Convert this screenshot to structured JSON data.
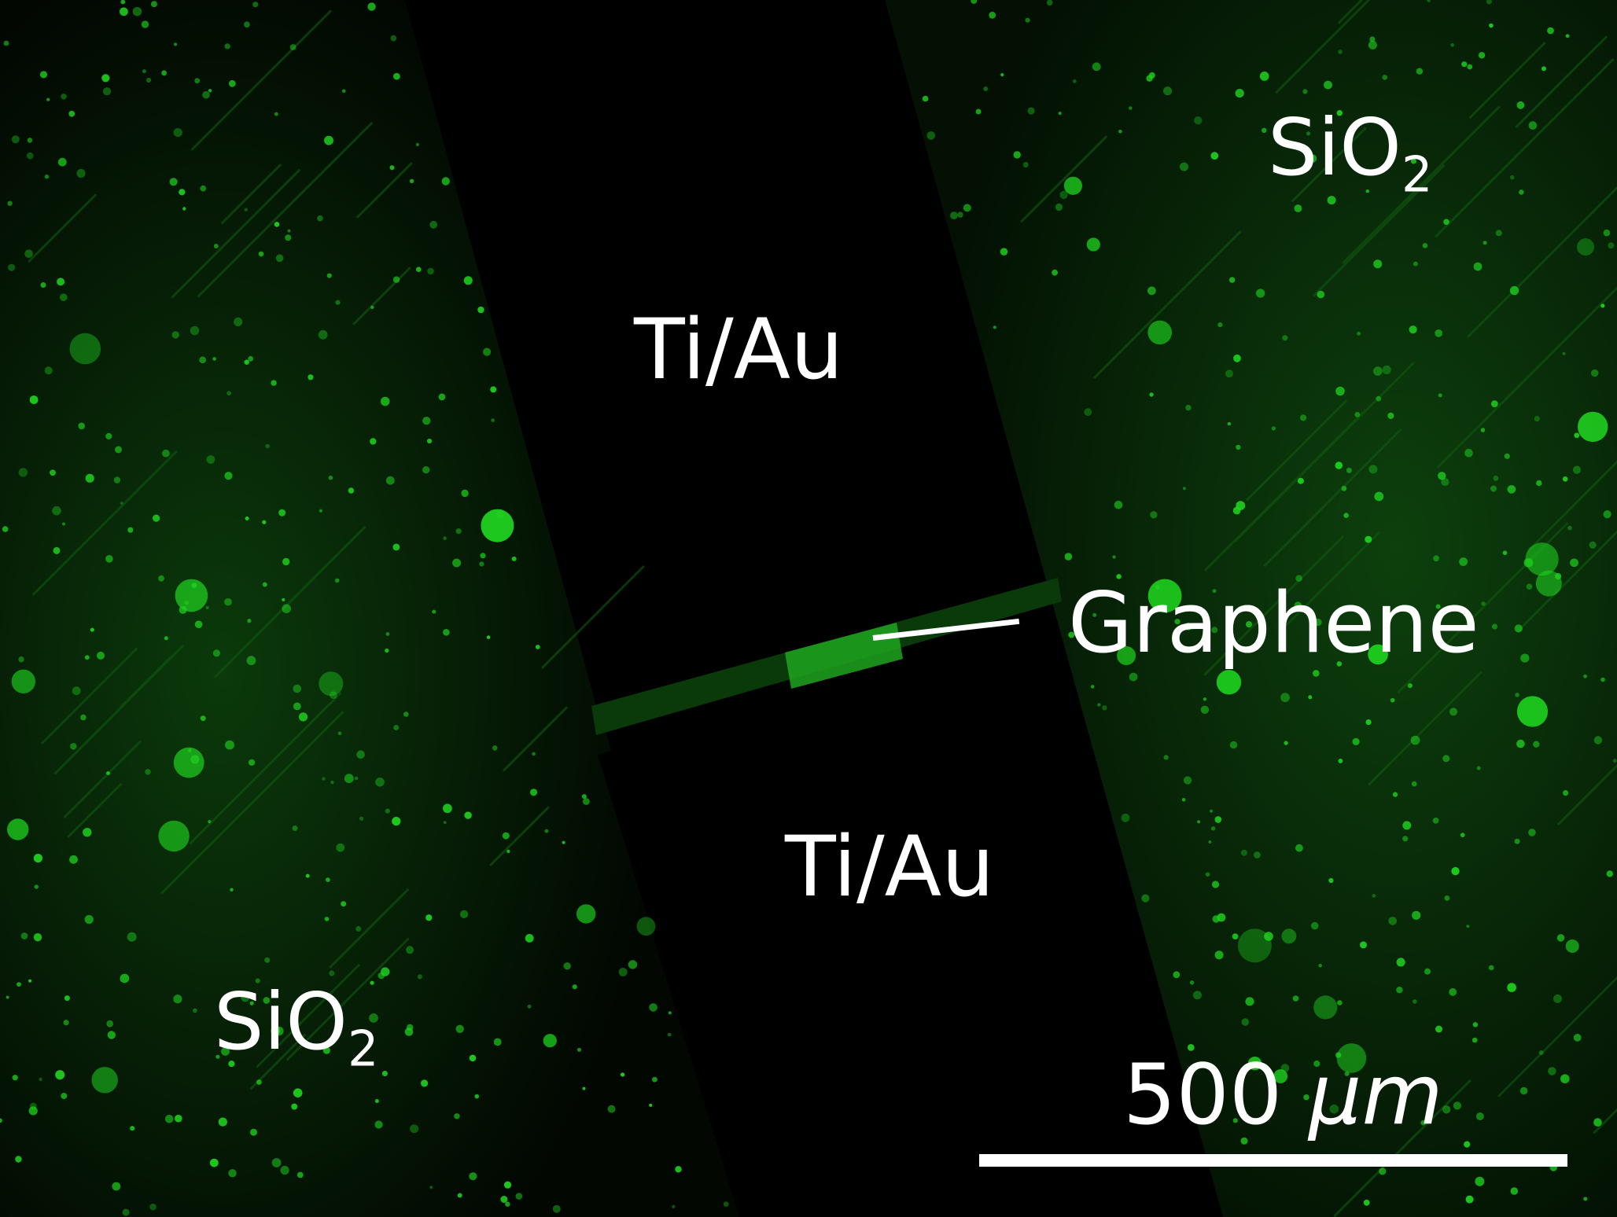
{
  "image": {
    "subject": "fluorescence micrograph",
    "colors": {
      "background": "#000000",
      "fluorescence": "#1fd11f",
      "fluorescence_dim": "#0b4d0b",
      "label": "#ffffff"
    }
  },
  "labels": {
    "sio2_top": {
      "base": "SiO",
      "sub": "2"
    },
    "sio2_bottom": {
      "base": "SiO",
      "sub": "2"
    },
    "electrode_top": "Ti/Au",
    "electrode_bottom": "Ti/Au",
    "channel": "Graphene"
  },
  "scale_bar": {
    "value": "500",
    "unit": "μm"
  }
}
